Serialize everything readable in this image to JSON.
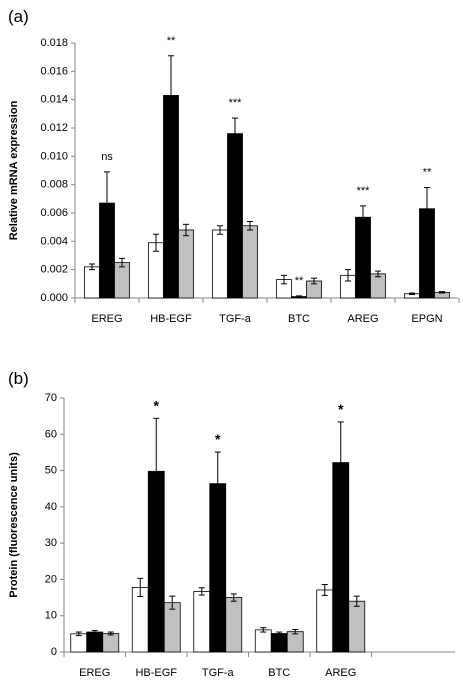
{
  "chart_data": [
    {
      "panel_label": "(a)",
      "type": "bar",
      "ylabel": "Relative mRNA expression",
      "ylim": [
        0,
        0.018
      ],
      "yticks": [
        "0.000",
        "0.002",
        "0.004",
        "0.006",
        "0.008",
        "0.010",
        "0.012",
        "0.014",
        "0.016",
        "0.018"
      ],
      "grid": false,
      "categories": [
        "EREG",
        "HB-EGF",
        "TGF-a",
        "BTC",
        "AREG",
        "EPGN"
      ],
      "series": [
        {
          "color": "#ffffff",
          "values": [
            0.0022,
            0.0039,
            0.0048,
            0.0013,
            0.0016,
            0.0003
          ],
          "errors": [
            0.0002,
            0.0006,
            0.0003,
            0.0003,
            0.0004,
            5e-05
          ]
        },
        {
          "color": "#000000",
          "values": [
            0.0067,
            0.0143,
            0.0116,
            0.0001,
            0.0057,
            0.0063
          ],
          "errors": [
            0.0022,
            0.0028,
            0.0011,
            5e-05,
            0.0008,
            0.0015
          ]
        },
        {
          "color": "#c0c0c0",
          "values": [
            0.0025,
            0.0048,
            0.0051,
            0.0012,
            0.0017,
            0.0004
          ],
          "errors": [
            0.0003,
            0.0004,
            0.0003,
            0.0002,
            0.0002,
            5e-05
          ]
        }
      ],
      "annotations": [
        "ns",
        "**",
        "***",
        "**",
        "***",
        "**"
      ]
    },
    {
      "panel_label": "(b)",
      "type": "bar",
      "ylabel": "Protein (fluorescence units)",
      "ylim": [
        0,
        70
      ],
      "yticks": [
        "0",
        "10",
        "20",
        "30",
        "40",
        "50",
        "60",
        "70"
      ],
      "grid": false,
      "categories": [
        "EREG",
        "HB-EGF",
        "TGF-a",
        "BTC",
        "AREG"
      ],
      "series": [
        {
          "color": "#ffffff",
          "values": [
            5.0,
            17.8,
            16.7,
            6.1,
            17.1
          ],
          "errors": [
            0.5,
            2.5,
            1.0,
            0.6,
            1.5
          ]
        },
        {
          "color": "#000000",
          "values": [
            5.5,
            49.8,
            46.4,
            5.1,
            52.2
          ],
          "errors": [
            0.4,
            14.6,
            8.7,
            0.4,
            11.2
          ]
        },
        {
          "color": "#c0c0c0",
          "values": [
            5.1,
            13.6,
            15.0,
            5.6,
            14.0
          ],
          "errors": [
            0.4,
            1.8,
            1.0,
            0.6,
            1.4
          ]
        }
      ],
      "annotations": [
        "",
        "*",
        "*",
        "",
        "*"
      ]
    }
  ]
}
